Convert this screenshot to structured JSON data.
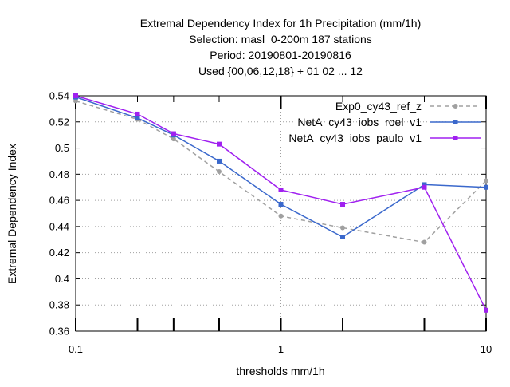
{
  "chart_data": {
    "type": "line",
    "title_lines": [
      "Extremal Dependency Index  for 1h Precipitation (mm/1h)",
      "Selection: masl_0-200m    187 stations",
      "Period: 20190801-20190816",
      "Used {00,06,12,18} + 01 02 ... 12"
    ],
    "xlabel": "thresholds mm/1h",
    "ylabel": "Extremal Dependency Index",
    "x_scale": "log",
    "xlim": [
      0.1,
      10
    ],
    "ylim": [
      0.36,
      0.54
    ],
    "x_ticks": [
      0.1,
      1,
      10
    ],
    "x_tick_labels": [
      "0.1",
      "1",
      "10"
    ],
    "x_minor_ticks": [
      0.2,
      0.3,
      0.5,
      2,
      5
    ],
    "y_ticks": [
      0.36,
      0.38,
      0.4,
      0.42,
      0.44,
      0.46,
      0.48,
      0.5,
      0.52,
      0.54
    ],
    "y_tick_labels": [
      "0.36",
      "0.38",
      "0.4",
      "0.42",
      "0.44",
      "0.46",
      "0.48",
      "0.5",
      "0.52",
      "0.54"
    ],
    "grid": true,
    "legend_position": "top-right",
    "x": [
      0.1,
      0.2,
      0.3,
      0.5,
      1,
      2,
      5,
      10
    ],
    "series": [
      {
        "name": "Exp0_cy43_ref_z",
        "color": "#a0a0a0",
        "dashed": true,
        "marker": "circle",
        "values": [
          0.536,
          0.522,
          0.507,
          0.482,
          0.448,
          0.439,
          0.428,
          0.475
        ]
      },
      {
        "name": "NetA_cy43_iobs_roel_v1",
        "color": "#3a68cc",
        "dashed": false,
        "marker": "square",
        "values": [
          0.539,
          0.523,
          0.51,
          0.49,
          0.457,
          0.432,
          0.472,
          0.47
        ]
      },
      {
        "name": "NetA_cy43_iobs_paulo_v1",
        "color": "#a020f0",
        "dashed": false,
        "marker": "square",
        "values": [
          0.54,
          0.526,
          0.511,
          0.503,
          0.468,
          0.457,
          0.47,
          0.376
        ]
      }
    ]
  }
}
